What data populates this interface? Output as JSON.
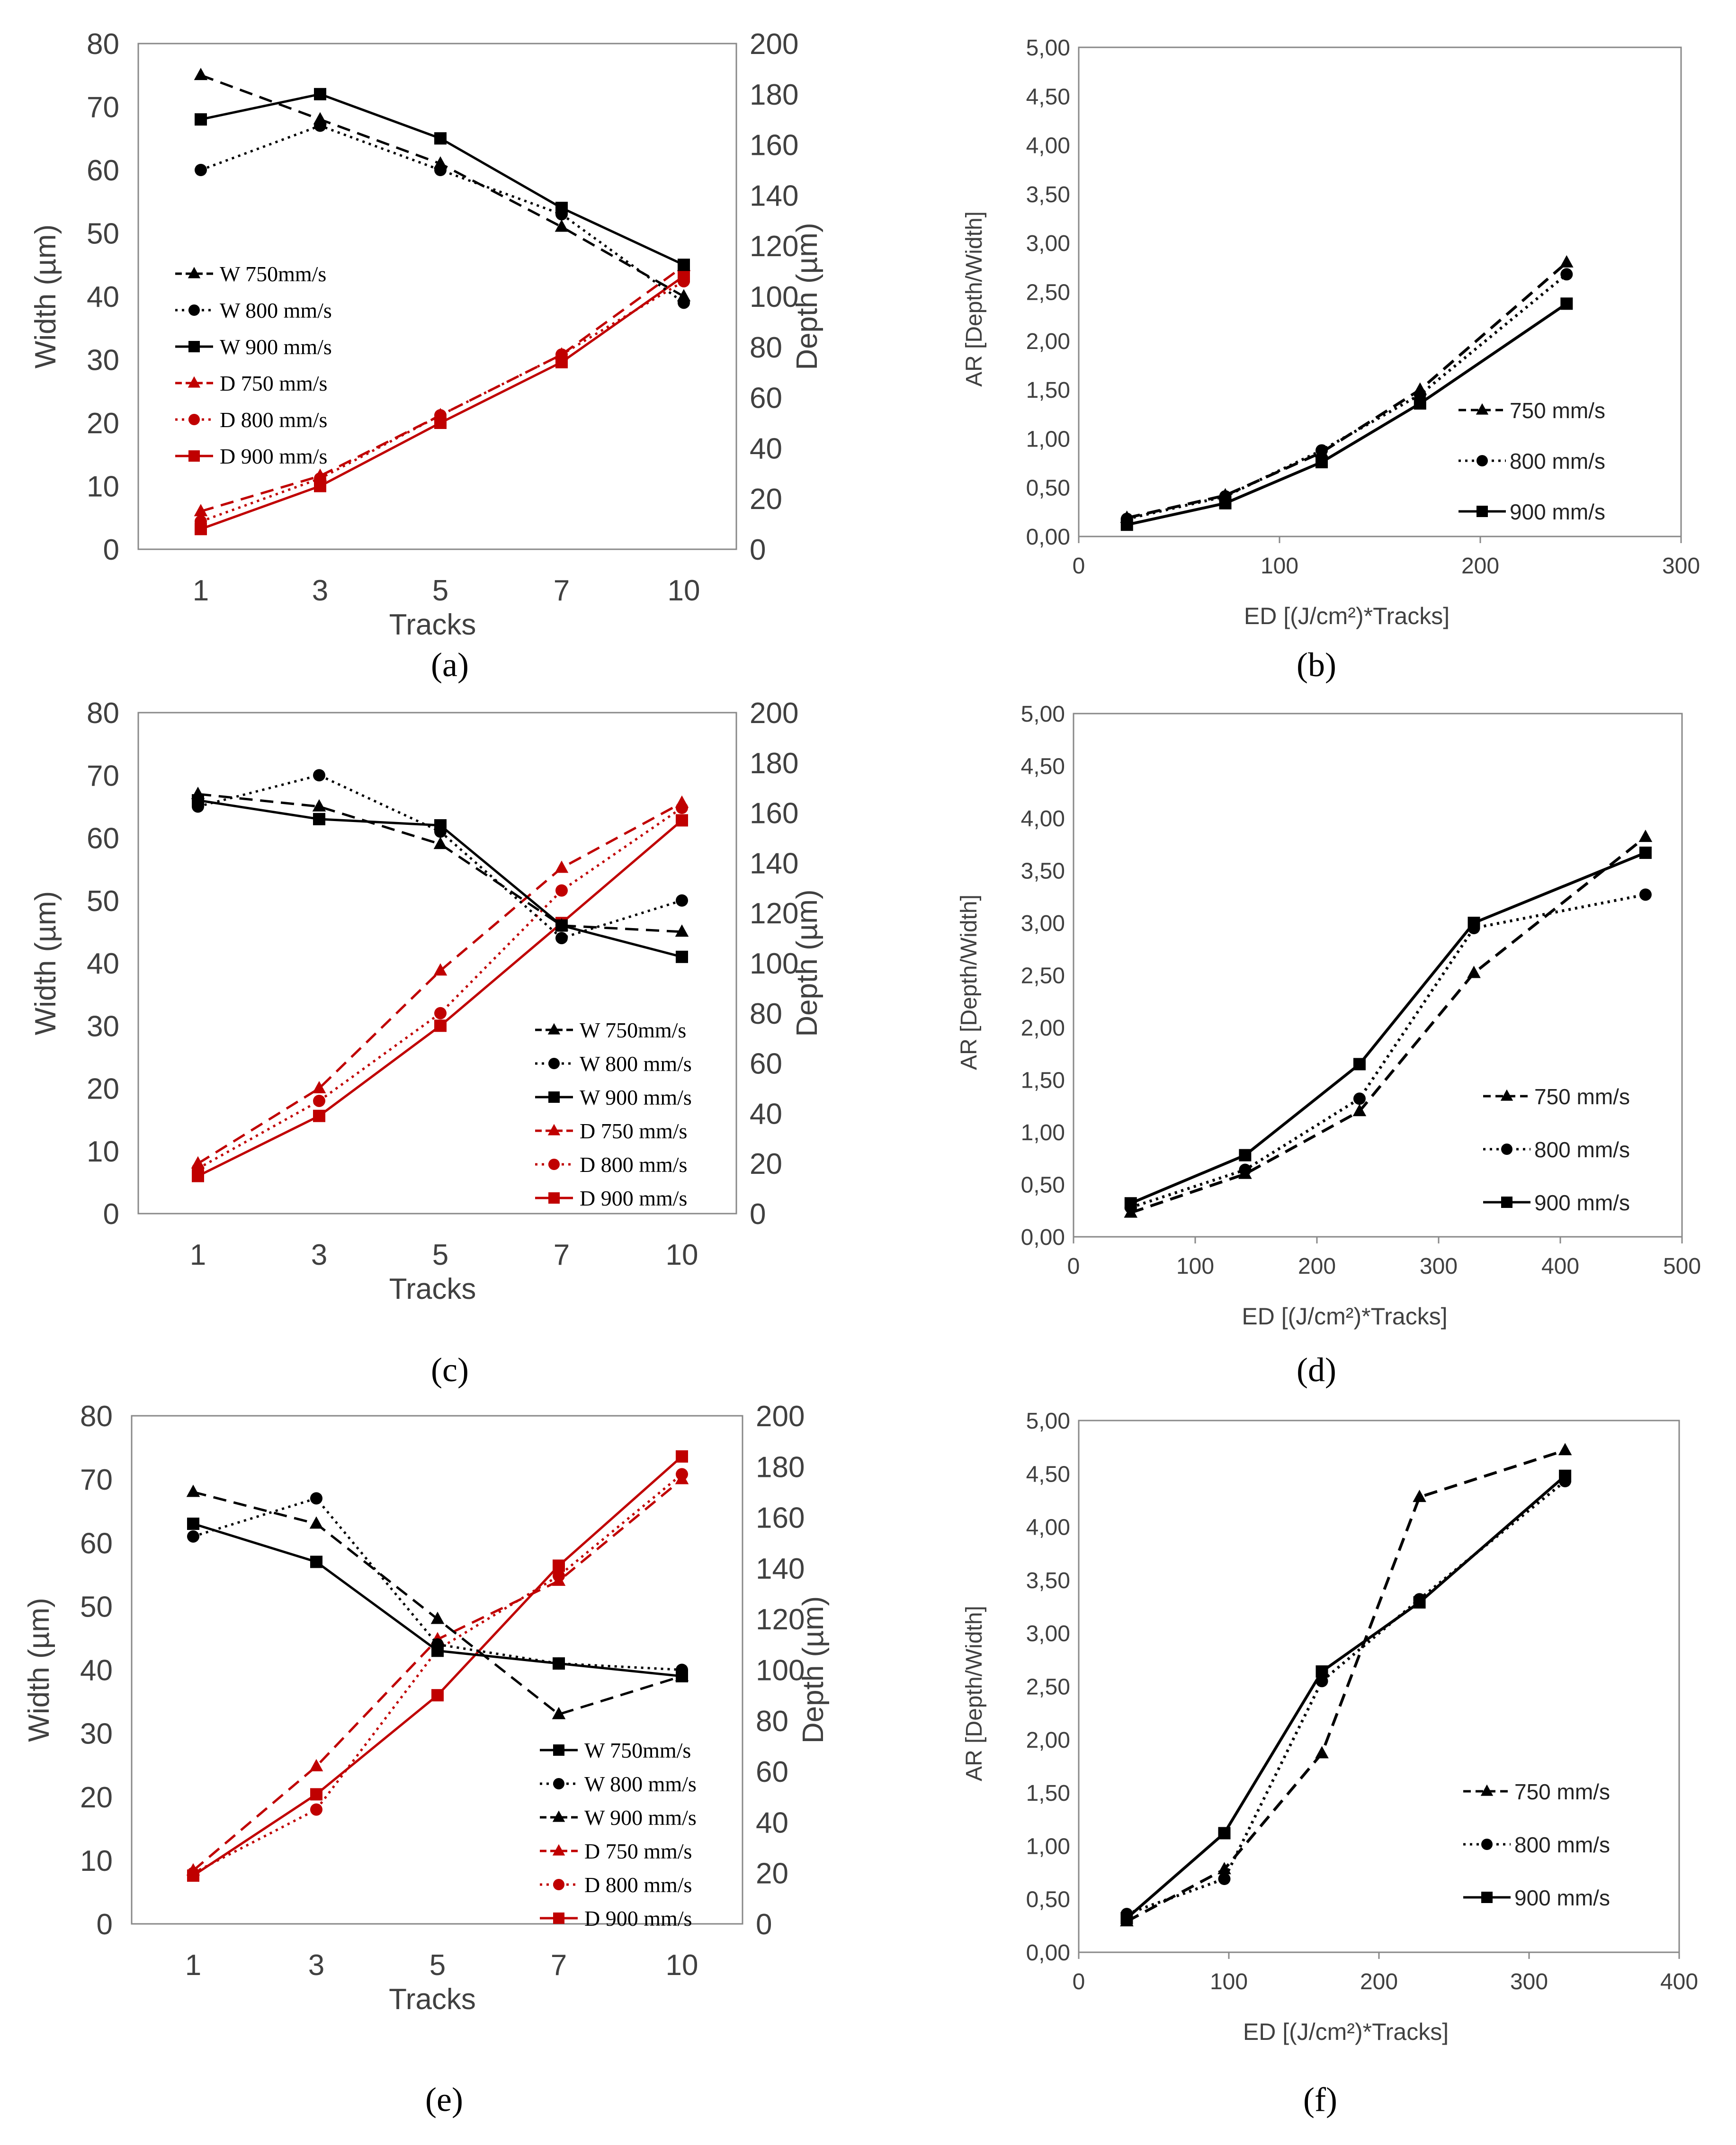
{
  "panel_labels": [
    "(a)",
    "(b)",
    "(c)",
    "(d)",
    "(e)",
    "(f)"
  ],
  "colors": {
    "black": "#000000",
    "red": "#c00000",
    "axis": "#888888",
    "text": "#404040"
  },
  "chart_data": [
    {
      "id": "a",
      "type": "line",
      "categories": [
        "1",
        "3",
        "5",
        "7",
        "10"
      ],
      "xlabel": "Tracks",
      "ylabel": "Width (µm)",
      "y2label": "Depth (µm)",
      "ylim": [
        0,
        80
      ],
      "y2lim": [
        0,
        200
      ],
      "yticks": [
        "0",
        "10",
        "20",
        "30",
        "40",
        "50",
        "60",
        "70",
        "80"
      ],
      "y2ticks": [
        "0",
        "20",
        "40",
        "60",
        "80",
        "100",
        "120",
        "140",
        "160",
        "180",
        "200"
      ],
      "grid": false,
      "legend_position": "center-left",
      "series": [
        {
          "name": "W 750mm/s",
          "axis": "left",
          "color": "#000000",
          "marker": "triangle",
          "dash": "dashed",
          "values": [
            75,
            68,
            61,
            51,
            40
          ]
        },
        {
          "name": "W 800 mm/s",
          "axis": "left",
          "color": "#000000",
          "marker": "circle",
          "dash": "dotted",
          "values": [
            60,
            67,
            60,
            53,
            39
          ]
        },
        {
          "name": "W 900 mm/s",
          "axis": "left",
          "color": "#000000",
          "marker": "square",
          "dash": "solid",
          "values": [
            68,
            72,
            65,
            54,
            45
          ]
        },
        {
          "name": "D 750 mm/s",
          "axis": "right",
          "color": "#c00000",
          "marker": "triangle",
          "dash": "dashed",
          "values": [
            15,
            29,
            53,
            77,
            112
          ]
        },
        {
          "name": "D 800 mm/s",
          "axis": "right",
          "color": "#c00000",
          "marker": "circle",
          "dash": "dotted",
          "values": [
            11,
            28,
            53,
            77,
            106
          ]
        },
        {
          "name": "D 900 mm/s",
          "axis": "right",
          "color": "#c00000",
          "marker": "square",
          "dash": "solid",
          "values": [
            8,
            25,
            50,
            74,
            108
          ]
        }
      ]
    },
    {
      "id": "b",
      "type": "line",
      "xlabel": "ED [(J/cm²)*Tracks]",
      "ylabel": "AR [Depth/Width]",
      "xlim": [
        0,
        300
      ],
      "ylim": [
        0,
        5
      ],
      "xticks": [
        "0",
        "100",
        "200",
        "300"
      ],
      "yticks": [
        "0,00",
        "0,50",
        "1,00",
        "1,50",
        "2,00",
        "2,50",
        "3,00",
        "3,50",
        "4,00",
        "4,50",
        "5,00"
      ],
      "grid": false,
      "legend_position": "center-right",
      "series": [
        {
          "name": "750 mm/s",
          "marker": "triangle",
          "dash": "dashed",
          "x": [
            24,
            73,
            121,
            170,
            243
          ],
          "y": [
            0.19,
            0.42,
            0.86,
            1.5,
            2.8
          ]
        },
        {
          "name": "800 mm/s",
          "marker": "circle",
          "dash": "dotted",
          "x": [
            24,
            73,
            121,
            170,
            243
          ],
          "y": [
            0.18,
            0.41,
            0.88,
            1.45,
            2.68
          ]
        },
        {
          "name": "900 mm/s",
          "marker": "square",
          "dash": "solid",
          "x": [
            24,
            73,
            121,
            170,
            243
          ],
          "y": [
            0.12,
            0.34,
            0.76,
            1.36,
            2.38
          ]
        }
      ]
    },
    {
      "id": "c",
      "type": "line",
      "categories": [
        "1",
        "3",
        "5",
        "7",
        "10"
      ],
      "xlabel": "Tracks",
      "ylabel": "Width (µm)",
      "y2label": "Depth (µm)",
      "ylim": [
        0,
        80
      ],
      "y2lim": [
        0,
        200
      ],
      "yticks": [
        "0",
        "10",
        "20",
        "30",
        "40",
        "50",
        "60",
        "70",
        "80"
      ],
      "y2ticks": [
        "0",
        "20",
        "40",
        "60",
        "80",
        "100",
        "120",
        "140",
        "160",
        "180",
        "200"
      ],
      "grid": false,
      "legend_position": "bottom-right",
      "series": [
        {
          "name": "W 750mm/s",
          "axis": "left",
          "color": "#000000",
          "marker": "triangle",
          "dash": "dashed",
          "values": [
            67,
            65,
            59,
            46,
            45
          ]
        },
        {
          "name": "W 800 mm/s",
          "axis": "left",
          "color": "#000000",
          "marker": "circle",
          "dash": "dotted",
          "values": [
            65,
            70,
            61,
            44,
            50
          ]
        },
        {
          "name": "W 900 mm/s",
          "axis": "left",
          "color": "#000000",
          "marker": "square",
          "dash": "solid",
          "values": [
            66,
            63,
            62,
            46,
            41
          ]
        },
        {
          "name": "D 750 mm/s",
          "axis": "right",
          "color": "#c00000",
          "marker": "triangle",
          "dash": "dashed",
          "values": [
            20,
            50,
            97,
            138,
            164
          ]
        },
        {
          "name": "D 800 mm/s",
          "axis": "right",
          "color": "#c00000",
          "marker": "circle",
          "dash": "dotted",
          "values": [
            18,
            45,
            80,
            129,
            162
          ]
        },
        {
          "name": "D 900 mm/s",
          "axis": "right",
          "color": "#c00000",
          "marker": "square",
          "dash": "solid",
          "values": [
            15,
            39,
            75,
            116,
            157
          ]
        }
      ]
    },
    {
      "id": "d",
      "type": "line",
      "xlabel": "ED [(J/cm²)*Tracks]",
      "ylabel": "AR [Depth/Width]",
      "xlim": [
        0,
        500
      ],
      "ylim": [
        0,
        5
      ],
      "xticks": [
        "0",
        "100",
        "200",
        "300",
        "400",
        "500"
      ],
      "yticks": [
        "0,00",
        "0,50",
        "1,00",
        "1,50",
        "2,00",
        "2,50",
        "3,00",
        "3,50",
        "4,00",
        "4,50",
        "5,00"
      ],
      "grid": false,
      "legend_position": "bottom-right",
      "series": [
        {
          "name": "750 mm/s",
          "marker": "triangle",
          "dash": "dashed",
          "x": [
            47,
            141,
            235,
            329,
            470
          ],
          "y": [
            0.23,
            0.6,
            1.2,
            2.52,
            3.82
          ]
        },
        {
          "name": "800 mm/s",
          "marker": "circle",
          "dash": "dotted",
          "x": [
            47,
            141,
            235,
            329,
            470
          ],
          "y": [
            0.28,
            0.64,
            1.32,
            2.95,
            3.27
          ]
        },
        {
          "name": "900 mm/s",
          "marker": "square",
          "dash": "solid",
          "x": [
            47,
            141,
            235,
            329,
            470
          ],
          "y": [
            0.32,
            0.78,
            1.65,
            3.0,
            3.67
          ]
        }
      ]
    },
    {
      "id": "e",
      "type": "line",
      "categories": [
        "1",
        "3",
        "5",
        "7",
        "10"
      ],
      "xlabel": "Tracks",
      "ylabel": "Width (µm)",
      "y2label": "Depth (µm)",
      "ylim": [
        0,
        80
      ],
      "y2lim": [
        0,
        200
      ],
      "yticks": [
        "0",
        "10",
        "20",
        "30",
        "40",
        "50",
        "60",
        "70",
        "80"
      ],
      "y2ticks": [
        "0",
        "20",
        "40",
        "60",
        "80",
        "100",
        "120",
        "140",
        "160",
        "180",
        "200"
      ],
      "grid": false,
      "legend_position": "bottom-right",
      "series": [
        {
          "name": "W 750mm/s",
          "axis": "left",
          "color": "#000000",
          "marker": "square",
          "dash": "solid",
          "values": [
            63,
            57,
            43,
            41,
            39
          ]
        },
        {
          "name": "W 800 mm/s",
          "axis": "left",
          "color": "#000000",
          "marker": "circle",
          "dash": "dotted",
          "values": [
            61,
            67,
            44,
            41,
            40
          ]
        },
        {
          "name": "W 900 mm/s",
          "axis": "left",
          "color": "#000000",
          "marker": "triangle",
          "dash": "dashed",
          "values": [
            68,
            63,
            48,
            33,
            39
          ]
        },
        {
          "name": "D 750 mm/s",
          "axis": "right",
          "color": "#c00000",
          "marker": "triangle",
          "dash": "dashed",
          "values": [
            21,
            62,
            112,
            135,
            175
          ]
        },
        {
          "name": "D 800 mm/s",
          "axis": "right",
          "color": "#c00000",
          "marker": "circle",
          "dash": "dotted",
          "values": [
            20,
            45,
            108,
            137,
            177
          ]
        },
        {
          "name": "D 900 mm/s",
          "axis": "right",
          "color": "#c00000",
          "marker": "square",
          "dash": "solid",
          "values": [
            19,
            51,
            90,
            141,
            184
          ]
        }
      ]
    },
    {
      "id": "f",
      "type": "line",
      "xlabel": "ED [(J/cm²)*Tracks]",
      "ylabel": "AR [Depth/Width]",
      "xlim": [
        0,
        400
      ],
      "ylim": [
        0,
        5
      ],
      "xticks": [
        "0",
        "100",
        "200",
        "300",
        "400"
      ],
      "yticks": [
        "0,00",
        "0,50",
        "1,00",
        "1,50",
        "2,00",
        "2,50",
        "3,00",
        "3,50",
        "4,00",
        "4,50",
        "5,00"
      ],
      "grid": false,
      "legend_position": "bottom-right",
      "series": [
        {
          "name": "750 mm/s",
          "marker": "triangle",
          "dash": "dashed",
          "x": [
            32,
            97,
            162,
            227,
            324
          ],
          "y": [
            0.29,
            0.78,
            1.87,
            4.28,
            4.72
          ]
        },
        {
          "name": "800 mm/s",
          "marker": "circle",
          "dash": "dotted",
          "x": [
            32,
            97,
            162,
            227,
            324
          ],
          "y": [
            0.36,
            0.69,
            2.55,
            3.32,
            4.43
          ]
        },
        {
          "name": "900 mm/s",
          "marker": "square",
          "dash": "solid",
          "x": [
            32,
            97,
            162,
            227,
            324
          ],
          "y": [
            0.32,
            1.12,
            2.64,
            3.29,
            4.48
          ]
        }
      ]
    }
  ]
}
